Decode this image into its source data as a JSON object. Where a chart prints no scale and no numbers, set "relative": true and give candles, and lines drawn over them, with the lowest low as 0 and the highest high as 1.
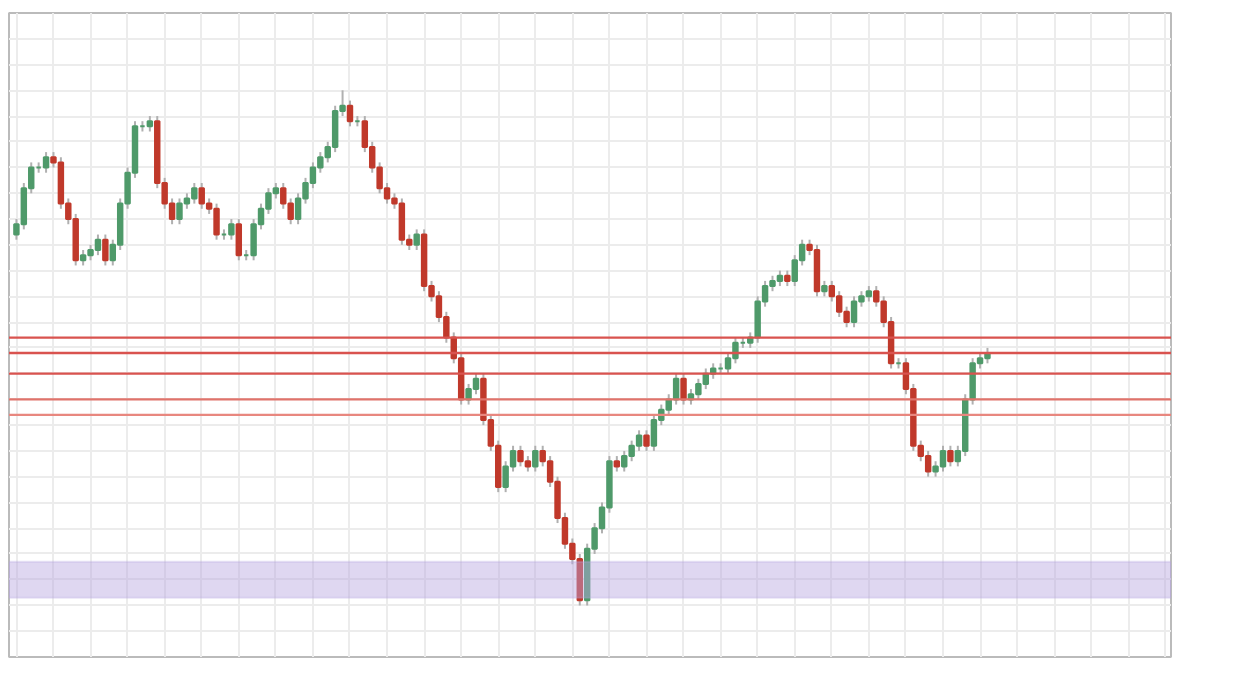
{
  "chart_data": {
    "type": "candlestick",
    "relative": true,
    "grid": true,
    "categories": [
      null,
      null,
      null,
      null,
      null,
      null,
      null,
      null,
      null,
      null,
      null,
      null,
      null,
      null,
      null,
      null,
      null,
      null,
      null,
      null,
      null,
      null,
      null,
      null,
      null,
      null,
      null,
      null,
      null,
      null,
      null,
      null,
      null,
      null,
      null,
      null,
      null,
      null,
      null,
      null,
      null,
      null,
      null,
      null,
      null,
      null,
      null,
      null,
      null,
      null,
      null,
      null,
      null,
      null,
      null,
      null,
      null,
      null,
      null,
      null,
      null,
      null,
      null,
      null,
      null,
      null,
      null,
      null,
      null,
      null,
      null,
      null,
      null,
      null,
      null,
      null,
      null,
      null,
      null,
      null,
      null,
      null,
      null,
      null,
      null,
      null,
      null,
      null,
      null,
      null,
      null,
      null,
      null,
      null,
      null,
      null,
      null,
      null,
      null,
      null,
      null,
      null,
      null,
      null,
      null,
      null,
      null,
      null,
      null,
      null,
      null,
      null,
      null,
      null,
      null,
      null,
      null,
      null,
      null,
      null,
      null,
      null,
      null,
      null,
      null,
      null,
      null,
      null,
      null,
      null,
      null,
      null
    ],
    "ohlc": [
      [
        0.72,
        0.75,
        0.71,
        0.74
      ],
      [
        0.74,
        0.82,
        0.73,
        0.81
      ],
      [
        0.81,
        0.86,
        0.8,
        0.85
      ],
      [
        0.85,
        0.86,
        0.84,
        0.85
      ],
      [
        0.85,
        0.88,
        0.84,
        0.87
      ],
      [
        0.87,
        0.88,
        0.85,
        0.86
      ],
      [
        0.86,
        0.87,
        0.77,
        0.78
      ],
      [
        0.78,
        0.79,
        0.74,
        0.75
      ],
      [
        0.75,
        0.76,
        0.66,
        0.67
      ],
      [
        0.67,
        0.69,
        0.66,
        0.68
      ],
      [
        0.68,
        0.7,
        0.67,
        0.69
      ],
      [
        0.69,
        0.72,
        0.68,
        0.71
      ],
      [
        0.71,
        0.72,
        0.66,
        0.67
      ],
      [
        0.67,
        0.71,
        0.66,
        0.7
      ],
      [
        0.7,
        0.79,
        0.69,
        0.78
      ],
      [
        0.78,
        0.85,
        0.77,
        0.84
      ],
      [
        0.84,
        0.94,
        0.83,
        0.93
      ],
      [
        0.93,
        0.94,
        0.92,
        0.93
      ],
      [
        0.93,
        0.95,
        0.92,
        0.94
      ],
      [
        0.94,
        0.95,
        0.81,
        0.82
      ],
      [
        0.82,
        0.83,
        0.77,
        0.78
      ],
      [
        0.78,
        0.79,
        0.74,
        0.75
      ],
      [
        0.75,
        0.79,
        0.74,
        0.78
      ],
      [
        0.78,
        0.8,
        0.77,
        0.79
      ],
      [
        0.79,
        0.82,
        0.78,
        0.81
      ],
      [
        0.81,
        0.82,
        0.77,
        0.78
      ],
      [
        0.78,
        0.79,
        0.76,
        0.77
      ],
      [
        0.77,
        0.78,
        0.71,
        0.72
      ],
      [
        0.72,
        0.73,
        0.71,
        0.72
      ],
      [
        0.72,
        0.75,
        0.71,
        0.74
      ],
      [
        0.74,
        0.75,
        0.67,
        0.68
      ],
      [
        0.68,
        0.69,
        0.67,
        0.68
      ],
      [
        0.68,
        0.75,
        0.67,
        0.74
      ],
      [
        0.74,
        0.78,
        0.73,
        0.77
      ],
      [
        0.77,
        0.81,
        0.76,
        0.8
      ],
      [
        0.8,
        0.82,
        0.79,
        0.81
      ],
      [
        0.81,
        0.82,
        0.77,
        0.78
      ],
      [
        0.78,
        0.79,
        0.74,
        0.75
      ],
      [
        0.75,
        0.8,
        0.74,
        0.79
      ],
      [
        0.79,
        0.83,
        0.78,
        0.82
      ],
      [
        0.82,
        0.86,
        0.81,
        0.85
      ],
      [
        0.85,
        0.88,
        0.84,
        0.87
      ],
      [
        0.87,
        0.9,
        0.86,
        0.89
      ],
      [
        0.89,
        0.97,
        0.88,
        0.96
      ],
      [
        0.96,
        1.0,
        0.95,
        0.97
      ],
      [
        0.97,
        0.98,
        0.93,
        0.94
      ],
      [
        0.94,
        0.95,
        0.93,
        0.94
      ],
      [
        0.94,
        0.95,
        0.88,
        0.89
      ],
      [
        0.89,
        0.9,
        0.84,
        0.85
      ],
      [
        0.85,
        0.86,
        0.8,
        0.81
      ],
      [
        0.81,
        0.82,
        0.78,
        0.79
      ],
      [
        0.79,
        0.8,
        0.77,
        0.78
      ],
      [
        0.78,
        0.79,
        0.7,
        0.71
      ],
      [
        0.71,
        0.72,
        0.69,
        0.7
      ],
      [
        0.7,
        0.73,
        0.69,
        0.72
      ],
      [
        0.72,
        0.73,
        0.61,
        0.62
      ],
      [
        0.62,
        0.63,
        0.59,
        0.6
      ],
      [
        0.6,
        0.61,
        0.55,
        0.56
      ],
      [
        0.56,
        0.57,
        0.51,
        0.52
      ],
      [
        0.52,
        0.53,
        0.47,
        0.48
      ],
      [
        0.48,
        0.49,
        0.39,
        0.4
      ],
      [
        0.4,
        0.43,
        0.39,
        0.42
      ],
      [
        0.42,
        0.45,
        0.41,
        0.44
      ],
      [
        0.44,
        0.45,
        0.35,
        0.36
      ],
      [
        0.36,
        0.37,
        0.3,
        0.31
      ],
      [
        0.31,
        0.32,
        0.22,
        0.23
      ],
      [
        0.23,
        0.28,
        0.22,
        0.27
      ],
      [
        0.27,
        0.31,
        0.26,
        0.3
      ],
      [
        0.3,
        0.31,
        0.27,
        0.28
      ],
      [
        0.28,
        0.29,
        0.26,
        0.27
      ],
      [
        0.27,
        0.31,
        0.26,
        0.3
      ],
      [
        0.3,
        0.31,
        0.27,
        0.28
      ],
      [
        0.28,
        0.29,
        0.23,
        0.24
      ],
      [
        0.24,
        0.25,
        0.16,
        0.17
      ],
      [
        0.17,
        0.18,
        0.11,
        0.12
      ],
      [
        0.12,
        0.13,
        0.08,
        0.09
      ],
      [
        0.09,
        0.1,
        0.0,
        0.01
      ],
      [
        0.01,
        0.12,
        0.0,
        0.11
      ],
      [
        0.11,
        0.16,
        0.1,
        0.15
      ],
      [
        0.15,
        0.2,
        0.14,
        0.19
      ],
      [
        0.19,
        0.29,
        0.18,
        0.28
      ],
      [
        0.28,
        0.29,
        0.26,
        0.27
      ],
      [
        0.27,
        0.3,
        0.26,
        0.29
      ],
      [
        0.29,
        0.32,
        0.28,
        0.31
      ],
      [
        0.31,
        0.34,
        0.3,
        0.33
      ],
      [
        0.33,
        0.34,
        0.3,
        0.31
      ],
      [
        0.31,
        0.37,
        0.3,
        0.36
      ],
      [
        0.36,
        0.39,
        0.35,
        0.38
      ],
      [
        0.38,
        0.41,
        0.37,
        0.4
      ],
      [
        0.4,
        0.45,
        0.39,
        0.44
      ],
      [
        0.44,
        0.45,
        0.39,
        0.4
      ],
      [
        0.4,
        0.42,
        0.39,
        0.41
      ],
      [
        0.41,
        0.44,
        0.4,
        0.43
      ],
      [
        0.43,
        0.46,
        0.42,
        0.45
      ],
      [
        0.45,
        0.47,
        0.44,
        0.46
      ],
      [
        0.46,
        0.47,
        0.45,
        0.46
      ],
      [
        0.46,
        0.49,
        0.45,
        0.48
      ],
      [
        0.48,
        0.52,
        0.47,
        0.51
      ],
      [
        0.51,
        0.52,
        0.5,
        0.51
      ],
      [
        0.51,
        0.53,
        0.5,
        0.52
      ],
      [
        0.52,
        0.6,
        0.51,
        0.59
      ],
      [
        0.59,
        0.63,
        0.58,
        0.62
      ],
      [
        0.62,
        0.64,
        0.61,
        0.63
      ],
      [
        0.63,
        0.65,
        0.62,
        0.64
      ],
      [
        0.64,
        0.65,
        0.62,
        0.63
      ],
      [
        0.63,
        0.68,
        0.62,
        0.67
      ],
      [
        0.67,
        0.71,
        0.66,
        0.7
      ],
      [
        0.7,
        0.71,
        0.68,
        0.69
      ],
      [
        0.69,
        0.7,
        0.6,
        0.61
      ],
      [
        0.61,
        0.63,
        0.6,
        0.62
      ],
      [
        0.62,
        0.63,
        0.59,
        0.6
      ],
      [
        0.6,
        0.61,
        0.56,
        0.57
      ],
      [
        0.57,
        0.58,
        0.54,
        0.55
      ],
      [
        0.55,
        0.6,
        0.54,
        0.59
      ],
      [
        0.59,
        0.61,
        0.58,
        0.6
      ],
      [
        0.6,
        0.62,
        0.59,
        0.61
      ],
      [
        0.61,
        0.62,
        0.58,
        0.59
      ],
      [
        0.59,
        0.6,
        0.54,
        0.55
      ],
      [
        0.55,
        0.56,
        0.46,
        0.47
      ],
      [
        0.47,
        0.48,
        0.46,
        0.47
      ],
      [
        0.47,
        0.48,
        0.41,
        0.42
      ],
      [
        0.42,
        0.43,
        0.3,
        0.31
      ],
      [
        0.31,
        0.32,
        0.28,
        0.29
      ],
      [
        0.29,
        0.3,
        0.25,
        0.26
      ],
      [
        0.26,
        0.28,
        0.25,
        0.27
      ],
      [
        0.27,
        0.31,
        0.26,
        0.3
      ],
      [
        0.3,
        0.31,
        0.27,
        0.28
      ],
      [
        0.28,
        0.31,
        0.27,
        0.3
      ],
      [
        0.3,
        0.41,
        0.29,
        0.4
      ],
      [
        0.4,
        0.48,
        0.39,
        0.47
      ],
      [
        0.47,
        0.49,
        0.46,
        0.48
      ],
      [
        0.48,
        0.5,
        0.47,
        0.49
      ]
    ],
    "ref_lines": [
      {
        "axis": "y",
        "value": 0.52,
        "color": "#d9534f"
      },
      {
        "axis": "y",
        "value": 0.49,
        "color": "#d9534f"
      },
      {
        "axis": "y",
        "value": 0.45,
        "color": "#d9534f"
      },
      {
        "axis": "y",
        "value": 0.4,
        "color": "#e0736b"
      },
      {
        "axis": "y",
        "value": 0.37,
        "color": "#e8877f"
      }
    ],
    "bands": [
      {
        "axis": "y",
        "from": 0.015,
        "to": 0.085,
        "color": "#b7a6e0"
      }
    ]
  }
}
